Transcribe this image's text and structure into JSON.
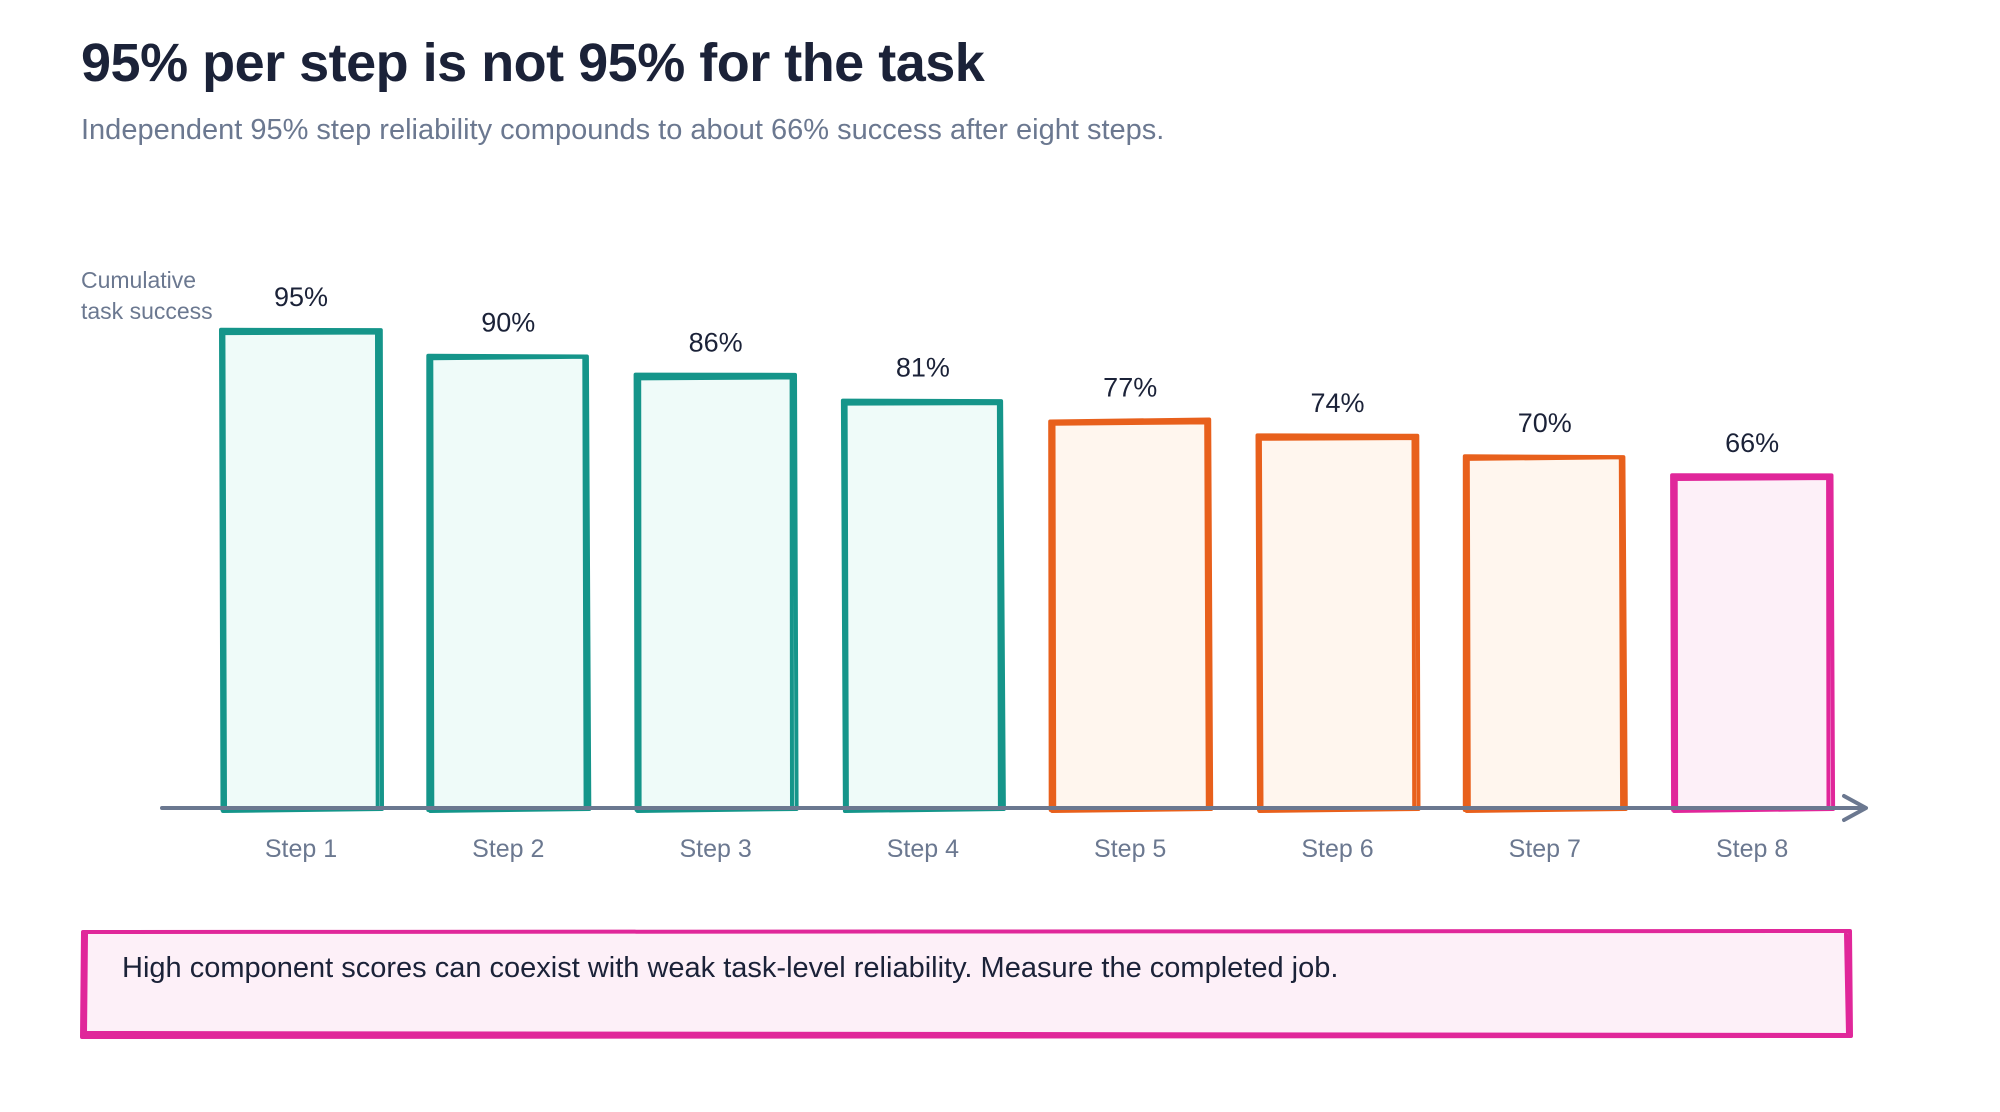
{
  "header": {
    "title": "95% per step is not 95% for the task",
    "subtitle": "Independent 95% step reliability compounds to about 66% success after eight steps."
  },
  "chart_data": {
    "type": "bar",
    "ylabel_lines": [
      "Cumulative",
      "task success"
    ],
    "categories": [
      "Step 1",
      "Step 2",
      "Step 3",
      "Step 4",
      "Step 5",
      "Step 6",
      "Step 7",
      "Step 8"
    ],
    "values": [
      95,
      90,
      86,
      81,
      77,
      74,
      70,
      66
    ],
    "data_labels": [
      "95%",
      "90%",
      "86%",
      "81%",
      "77%",
      "74%",
      "70%",
      "66%"
    ],
    "ylim": [
      0,
      100
    ],
    "grid": false,
    "colors": {
      "teal": {
        "stroke": "#15958a",
        "fill": "#effbf9"
      },
      "orange": {
        "stroke": "#e8601c",
        "fill": "#fff6ee"
      },
      "pink": {
        "stroke": "#e0279a",
        "fill": "#fdf0f8"
      },
      "axis": "#6b7890",
      "label": "#1b2238",
      "tick": "#6b7890"
    },
    "bar_color_groups": [
      "teal",
      "teal",
      "teal",
      "teal",
      "orange",
      "orange",
      "orange",
      "pink"
    ]
  },
  "callout": {
    "text": "High component scores can coexist with weak task-level reliability. Measure the completed job.",
    "stroke": "#e0279a",
    "fill": "#fdf0f8"
  }
}
